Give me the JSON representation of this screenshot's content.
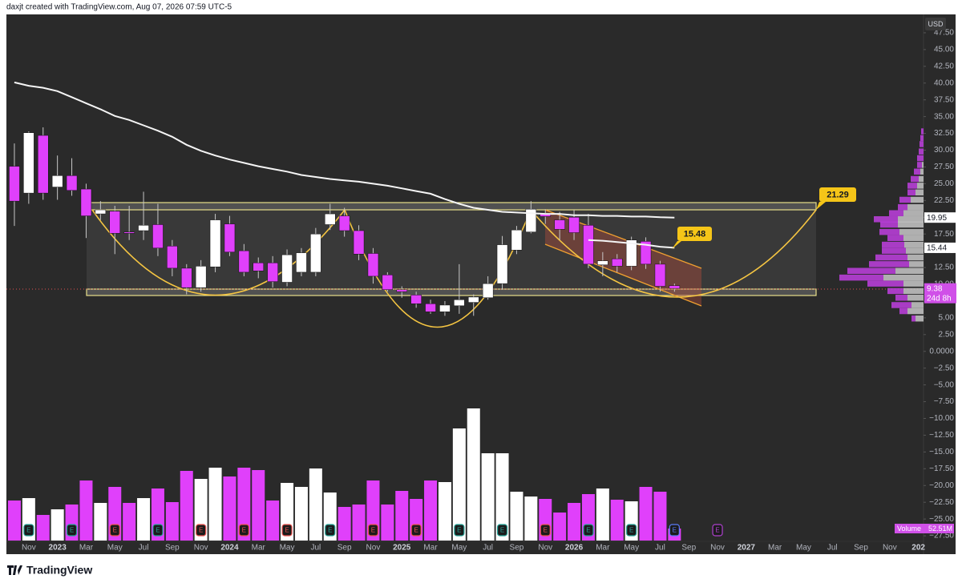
{
  "header": "daxjt created with TradingView.com, Aug 07, 2026 07:59 UTC-5",
  "footer": "TradingView",
  "chart_data": {
    "type": "candlestick",
    "currency": "USD",
    "categories": [
      null,
      "Nov",
      null,
      "2023",
      null,
      "Mar",
      null,
      "May",
      null,
      "Jul",
      null,
      "Sep",
      null,
      "Nov",
      null,
      "2024",
      null,
      "Mar",
      null,
      "May",
      null,
      "Jul",
      null,
      "Sep",
      null,
      "Nov",
      null,
      "2025",
      null,
      "Mar",
      null,
      "May",
      null,
      "Jul",
      null,
      "Sep",
      null,
      "Nov",
      null,
      "2026",
      null,
      "Mar",
      null,
      "May",
      null,
      "Jul",
      null,
      "Sep",
      null,
      "Nov",
      null,
      "2027",
      null,
      "Mar",
      null,
      "May",
      null,
      "Jul",
      null,
      "Sep",
      null,
      "Nov",
      null,
      "202"
    ],
    "open": [
      27.6,
      23.6,
      32.2,
      24.5,
      26.2,
      24.2,
      20.5,
      20.9,
      17.8,
      18.0,
      18.9,
      15.7,
      12.4,
      9.5,
      12.6,
      19.0,
      15.0,
      13.2,
      13.2,
      10.3,
      11.8,
      11.8,
      18.9,
      20.2,
      18.0,
      14.6,
      11.4,
      9.2,
      8.4,
      7.1,
      5.9,
      6.8,
      7.3,
      8.0,
      10.1,
      15.1,
      17.8,
      20.6,
      19.6,
      20.0,
      18.8,
      12.9,
      13.8,
      12.7,
      16.4,
      13.0,
      9.8,
      null,
      null,
      null,
      null,
      null,
      null,
      null,
      null,
      null,
      null,
      null,
      null,
      null,
      null,
      null,
      null,
      null
    ],
    "high": [
      31.0,
      32.8,
      33.4,
      29.2,
      28.8,
      25.0,
      22.4,
      21.7,
      21.7,
      23.8,
      22.0,
      16.6,
      13.0,
      13.6,
      20.5,
      20.2,
      16.0,
      14.0,
      14.2,
      15.2,
      15.4,
      18.4,
      22.0,
      21.4,
      18.8,
      15.4,
      11.8,
      9.7,
      8.9,
      7.7,
      7.5,
      13.0,
      8.5,
      11.2,
      17.2,
      18.7,
      22.4,
      21.2,
      20.8,
      21.1,
      20.5,
      14.8,
      14.5,
      17.1,
      17.0,
      13.5,
      10.1,
      null,
      null,
      null,
      null,
      null,
      null,
      null,
      null,
      null,
      null,
      null,
      null,
      null,
      null,
      null,
      null,
      null
    ],
    "low": [
      18.7,
      22.0,
      22.6,
      22.6,
      23.2,
      16.9,
      19.6,
      14.5,
      16.6,
      16.6,
      14.2,
      11.2,
      8.5,
      8.9,
      11.8,
      14.2,
      11.2,
      10.9,
      9.5,
      9.7,
      11.2,
      11.2,
      18.1,
      17.1,
      13.6,
      10.1,
      8.9,
      8.0,
      6.5,
      5.6,
      5.3,
      5.6,
      5.3,
      7.7,
      9.2,
      14.5,
      17.6,
      19.0,
      16.6,
      16.6,
      12.4,
      11.2,
      11.8,
      12.1,
      12.3,
      8.9,
      8.9,
      null,
      null,
      null,
      null,
      null,
      null,
      null,
      null,
      null,
      null,
      null,
      null,
      null,
      null,
      null,
      null,
      null
    ],
    "close": [
      22.4,
      32.6,
      23.6,
      26.2,
      24.0,
      20.2,
      21.1,
      17.6,
      17.6,
      18.8,
      15.4,
      12.4,
      9.5,
      12.7,
      19.6,
      14.8,
      11.8,
      12.0,
      10.4,
      14.4,
      14.7,
      17.5,
      20.5,
      18.0,
      14.5,
      11.2,
      9.2,
      8.9,
      7.1,
      5.9,
      6.9,
      7.7,
      8.1,
      10.1,
      15.9,
      18.1,
      21.2,
      20.1,
      18.2,
      17.7,
      13.0,
      13.5,
      12.7,
      16.6,
      13.0,
      9.7,
      9.38,
      null,
      null,
      null,
      null,
      null,
      null,
      null,
      null,
      null,
      null,
      null,
      null,
      null,
      null,
      null,
      null,
      null
    ],
    "countdown": "24d 8h",
    "up_color": "#ffffff",
    "down_color": "#e040fb",
    "volume": {
      "name": "Volume",
      "values": [
        175,
        185.5,
        112,
        136.5,
        157.5,
        262.5,
        164.5,
        234.5,
        164.5,
        185.5,
        227.5,
        168,
        304.5,
        269.5,
        318.5,
        280,
        318.5,
        308,
        175,
        252,
        234.5,
        315,
        210,
        147,
        157.5,
        262.5,
        157.5,
        217,
        182,
        262.5,
        255.5,
        490,
        577.5,
        381.5,
        381.5,
        213.5,
        192.5,
        182,
        122.5,
        164.5,
        203,
        227.5,
        178.5,
        171.5,
        234.5,
        213.5,
        52.51,
        null,
        null,
        null,
        null,
        null,
        null,
        null,
        null,
        null,
        null,
        null,
        null,
        null,
        null,
        null,
        null,
        null
      ],
      "value_labels": [
        null,
        null,
        null,
        null,
        null,
        null,
        null,
        null,
        null,
        null,
        null,
        null,
        null,
        null,
        null,
        null,
        null,
        null,
        null,
        null,
        null,
        null,
        null,
        null,
        null,
        null,
        null,
        null,
        null,
        null,
        null,
        null,
        null,
        null,
        null,
        null,
        null,
        null,
        null,
        null,
        null,
        null,
        null,
        null,
        null,
        null,
        "52.51M",
        null,
        null,
        null,
        null,
        null,
        null,
        null,
        null,
        null,
        null,
        null,
        null,
        null,
        null,
        null,
        null,
        null
      ]
    },
    "moving_averages": [
      {
        "color": "#f5f5f5",
        "values": [
          40.1,
          39.6,
          39.3,
          38.8,
          37.9,
          37.0,
          36.1,
          35.1,
          34.5,
          33.7,
          32.9,
          32.0,
          30.8,
          29.9,
          29.2,
          28.6,
          28.1,
          27.6,
          27.2,
          26.8,
          26.3,
          26.0,
          25.7,
          25.5,
          25.3,
          25.0,
          24.7,
          24.3,
          23.9,
          23.5,
          22.7,
          22.0,
          21.4,
          21.1,
          20.8,
          20.7,
          20.6,
          20.5,
          20.5,
          20.3,
          20.3,
          20.2,
          20.2,
          20.1,
          20.1,
          20.0,
          19.95,
          null,
          null,
          null,
          null,
          null,
          null,
          null,
          null,
          null,
          null,
          null,
          null,
          null,
          null,
          null,
          null,
          null
        ]
      },
      {
        "color": "#f5f5f5",
        "values": [
          null,
          null,
          null,
          null,
          null,
          null,
          null,
          null,
          null,
          null,
          null,
          null,
          null,
          null,
          null,
          null,
          null,
          null,
          null,
          null,
          null,
          null,
          null,
          null,
          null,
          null,
          null,
          null,
          null,
          null,
          null,
          null,
          null,
          null,
          null,
          null,
          null,
          null,
          null,
          null,
          16.6,
          16.5,
          16.3,
          16.1,
          15.9,
          15.6,
          15.44,
          null,
          null,
          null,
          null,
          null,
          null,
          null,
          null,
          null,
          null,
          null,
          null,
          null,
          null,
          null,
          null,
          null
        ]
      }
    ],
    "callouts": [
      21.29,
      15.48
    ],
    "earnings": {
      "label": "E",
      "at": [
        1,
        4,
        7,
        10,
        13,
        16,
        19,
        22,
        25,
        28,
        31,
        34,
        37,
        40,
        43,
        46,
        49
      ],
      "colors": [
        "#26a69a",
        "#26a69a",
        "#ef5350",
        "#26a69a",
        "#ef5350",
        "#ef5350",
        "#ef5350",
        "#26a69a",
        "#ef5350",
        "#ef5350",
        "#26a69a",
        "#26a69a",
        "#ef5350",
        "#26a69a",
        "#26a69a",
        "#5b7cfa",
        "#b040d0"
      ]
    },
    "volume_profile": {
      "levels": [
        32.8,
        31.8,
        30.9,
        29.8,
        28.8,
        27.8,
        26.8,
        25.7,
        24.7,
        23.7,
        22.6,
        21.5,
        20.6,
        19.7,
        18.9,
        17.8,
        16.9,
        15.9,
        15.0,
        14.0,
        13.0,
        12.0,
        11.0,
        10.1,
        9.0,
        8.0,
        6.9,
        6.0,
        4.9
      ],
      "up": [
        0,
        0,
        0,
        0,
        0,
        2,
        4,
        6,
        8,
        10,
        16,
        20,
        25,
        32,
        32,
        30,
        25,
        24,
        22,
        20,
        18,
        35,
        50,
        25,
        25,
        20,
        15,
        20,
        10
      ],
      "down": [
        3,
        4,
        5,
        6,
        8,
        6,
        8,
        10,
        12,
        10,
        14,
        12,
        18,
        30,
        22,
        25,
        20,
        28,
        30,
        40,
        50,
        60,
        55,
        45,
        20,
        15,
        25,
        10,
        5
      ],
      "up_color": "#c8c8c8",
      "down_color": "#c040e0"
    },
    "ylim": [
      -30,
      50
    ],
    "yticks": [
      {
        "value": 47.5,
        "label": "47.50"
      },
      {
        "value": 45,
        "label": "45.00"
      },
      {
        "value": 42.5,
        "label": "42.50"
      },
      {
        "value": 40,
        "label": "40.00"
      },
      {
        "value": 37.5,
        "label": "37.50"
      },
      {
        "value": 35,
        "label": "35.00"
      },
      {
        "value": 32.5,
        "label": "32.50"
      },
      {
        "value": 30,
        "label": "30.00"
      },
      {
        "value": 27.5,
        "label": "27.50"
      },
      {
        "value": 25,
        "label": "25.00"
      },
      {
        "value": 22.5,
        "label": "22.50"
      },
      {
        "value": 20,
        "label": "20.00"
      },
      {
        "value": 17.5,
        "label": "17.50"
      },
      {
        "value": 15,
        "label": "15.00"
      },
      {
        "value": 12.5,
        "label": "12.50"
      },
      {
        "value": 10,
        "label": "10.00"
      },
      {
        "value": 7.5,
        "label": "7.50"
      },
      {
        "value": 5,
        "label": "5.00"
      },
      {
        "value": 2.5,
        "label": "2.50"
      },
      {
        "value": 0,
        "label": "0.0000"
      },
      {
        "value": -2.5,
        "label": "−2.50"
      },
      {
        "value": -5,
        "label": "−5.00"
      },
      {
        "value": -7.5,
        "label": "−7.50"
      },
      {
        "value": -10,
        "label": "−10.00"
      },
      {
        "value": -12.5,
        "label": "−12.50"
      },
      {
        "value": -15,
        "label": "−15.00"
      },
      {
        "value": -17.5,
        "label": "−17.50"
      },
      {
        "value": -20,
        "label": "−20.00"
      },
      {
        "value": -22.5,
        "label": "−22.50"
      },
      {
        "value": -25,
        "label": "−25.00"
      },
      {
        "value": -27.5,
        "label": "−27.50"
      }
    ],
    "grid": false
  }
}
